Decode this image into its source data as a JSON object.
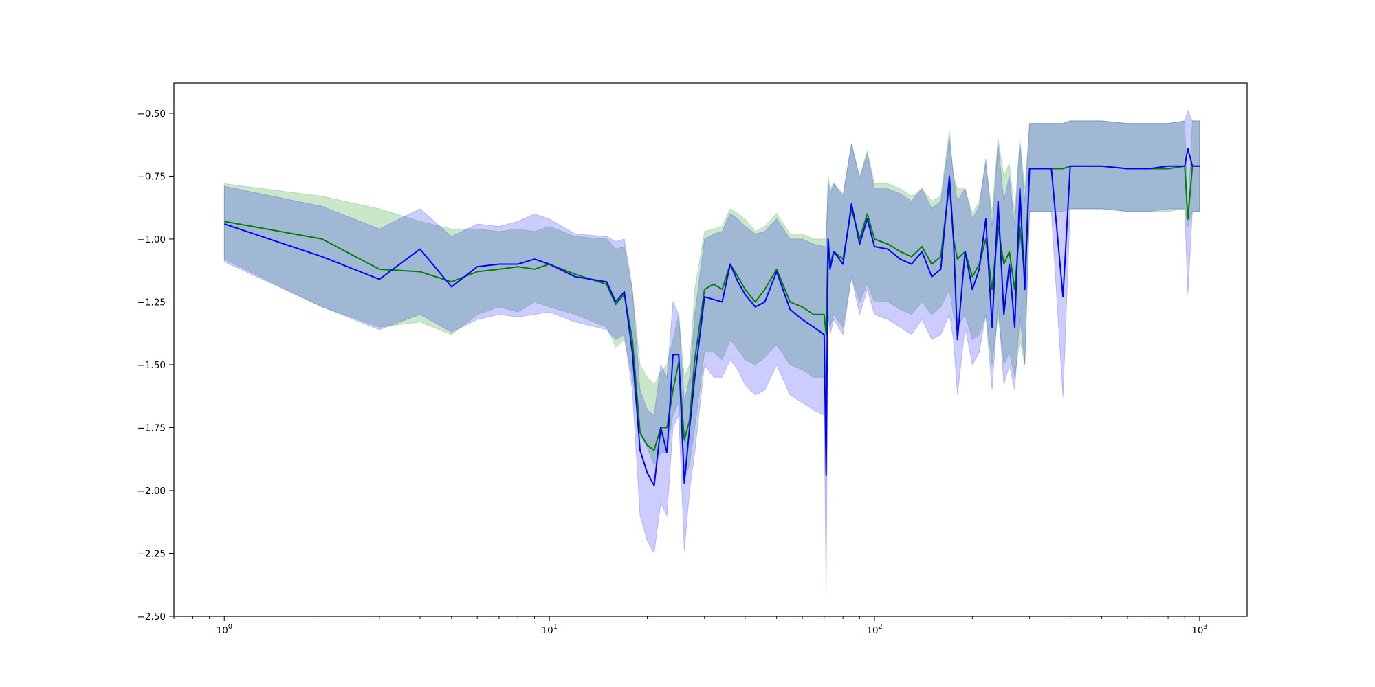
{
  "chart_data": {
    "type": "line",
    "title": "",
    "xlabel": "",
    "ylabel": "",
    "x_scale": "log",
    "xlim": [
      0.7,
      1400
    ],
    "ylim": [
      -2.5,
      -0.38
    ],
    "grid": false,
    "legend": "none",
    "x_ticks": [
      {
        "value": 1,
        "base": "10",
        "exp": "0"
      },
      {
        "value": 10,
        "base": "10",
        "exp": "1"
      },
      {
        "value": 100,
        "base": "10",
        "exp": "2"
      },
      {
        "value": 1000,
        "base": "10",
        "exp": "3"
      }
    ],
    "y_ticks": [
      {
        "value": -0.5,
        "label": "−0.50"
      },
      {
        "value": -0.75,
        "label": "−0.75"
      },
      {
        "value": -1.0,
        "label": "−1.00"
      },
      {
        "value": -1.25,
        "label": "−1.25"
      },
      {
        "value": -1.5,
        "label": "−1.50"
      },
      {
        "value": -1.75,
        "label": "−1.75"
      },
      {
        "value": -2.0,
        "label": "−2.00"
      },
      {
        "value": -2.25,
        "label": "−2.25"
      },
      {
        "value": -2.5,
        "label": "−2.50"
      }
    ],
    "series": [
      {
        "color": "#008000",
        "band_color": "#2ca02c",
        "band_opacity": 0.25,
        "x": [
          1,
          2,
          3,
          4,
          5,
          6,
          7,
          8,
          9,
          10,
          12,
          15,
          16,
          17,
          18,
          19,
          20,
          21,
          22,
          23,
          24,
          25,
          26,
          27,
          28,
          30,
          32,
          34,
          36,
          38,
          40,
          43,
          46,
          50,
          55,
          60,
          65,
          70,
          71,
          72,
          73,
          75,
          80,
          85,
          90,
          95,
          100,
          110,
          120,
          130,
          140,
          150,
          160,
          170,
          175,
          180,
          190,
          200,
          210,
          220,
          230,
          240,
          250,
          260,
          270,
          280,
          290,
          300,
          350,
          380,
          400,
          500,
          600,
          700,
          800,
          900,
          920,
          950,
          1000
        ],
        "y": [
          -0.93,
          -1.0,
          -1.12,
          -1.13,
          -1.17,
          -1.13,
          -1.12,
          -1.11,
          -1.12,
          -1.1,
          -1.14,
          -1.18,
          -1.26,
          -1.22,
          -1.4,
          -1.77,
          -1.82,
          -1.84,
          -1.75,
          -1.75,
          -1.6,
          -1.49,
          -1.8,
          -1.72,
          -1.48,
          -1.2,
          -1.18,
          -1.2,
          -1.1,
          -1.15,
          -1.2,
          -1.25,
          -1.2,
          -1.12,
          -1.25,
          -1.27,
          -1.3,
          -1.3,
          -1.38,
          -1.0,
          -1.1,
          -1.05,
          -1.08,
          -0.88,
          -1.0,
          -0.9,
          -1.0,
          -1.02,
          -1.05,
          -1.07,
          -1.03,
          -1.1,
          -1.07,
          -0.78,
          -1.0,
          -1.08,
          -1.05,
          -1.15,
          -1.1,
          -1.0,
          -1.2,
          -0.95,
          -1.1,
          -1.05,
          -1.2,
          -0.95,
          -1.15,
          -0.72,
          -0.72,
          -0.72,
          -0.71,
          -0.71,
          -0.72,
          -0.72,
          -0.72,
          -0.71,
          -0.92,
          -0.71,
          -0.71
        ],
        "lower": [
          -1.08,
          -1.27,
          -1.35,
          -1.33,
          -1.38,
          -1.3,
          -1.27,
          -1.29,
          -1.25,
          -1.27,
          -1.3,
          -1.35,
          -1.43,
          -1.4,
          -1.55,
          -1.78,
          -1.83,
          -1.9,
          -1.85,
          -1.85,
          -1.7,
          -1.65,
          -1.95,
          -1.9,
          -1.75,
          -1.45,
          -1.45,
          -1.48,
          -1.4,
          -1.44,
          -1.48,
          -1.5,
          -1.47,
          -1.42,
          -1.5,
          -1.52,
          -1.55,
          -1.55,
          -1.55,
          -1.3,
          -1.35,
          -1.3,
          -1.35,
          -1.15,
          -1.25,
          -1.18,
          -1.25,
          -1.25,
          -1.28,
          -1.3,
          -1.25,
          -1.3,
          -1.27,
          -1.2,
          -1.3,
          -1.35,
          -1.3,
          -1.4,
          -1.38,
          -1.3,
          -1.5,
          -1.3,
          -1.5,
          -1.45,
          -1.55,
          -1.4,
          -1.5,
          -0.89,
          -0.89,
          -0.89,
          -0.88,
          -0.88,
          -0.89,
          -0.89,
          -0.89,
          -0.88,
          -0.95,
          -0.89,
          -0.89
        ],
        "upper": [
          -0.78,
          -0.83,
          -0.88,
          -0.93,
          -0.96,
          -0.96,
          -0.97,
          -0.96,
          -0.97,
          -0.95,
          -0.99,
          -1.0,
          -1.04,
          -1.03,
          -1.2,
          -1.5,
          -1.55,
          -1.58,
          -1.53,
          -1.5,
          -1.4,
          -1.3,
          -1.55,
          -1.5,
          -1.2,
          -0.97,
          -0.96,
          -0.95,
          -0.88,
          -0.9,
          -0.92,
          -0.97,
          -0.95,
          -0.9,
          -0.98,
          -0.98,
          -1.0,
          -1.0,
          -1.0,
          -0.75,
          -0.8,
          -0.78,
          -0.82,
          -0.62,
          -0.75,
          -0.65,
          -0.78,
          -0.78,
          -0.8,
          -0.83,
          -0.8,
          -0.85,
          -0.83,
          -0.57,
          -0.75,
          -0.8,
          -0.8,
          -0.9,
          -0.85,
          -0.7,
          -0.9,
          -0.6,
          -0.75,
          -0.7,
          -0.9,
          -0.6,
          -0.8,
          -0.54,
          -0.54,
          -0.54,
          -0.53,
          -0.53,
          -0.54,
          -0.54,
          -0.54,
          -0.53,
          -0.9,
          -0.53,
          -0.53
        ]
      },
      {
        "color": "#0000ff",
        "band_color": "#0000ff",
        "band_opacity": 0.2,
        "x": [
          1,
          2,
          3,
          4,
          5,
          6,
          7,
          8,
          9,
          10,
          12,
          15,
          16,
          17,
          18,
          19,
          20,
          21,
          22,
          23,
          24,
          25,
          26,
          27,
          28,
          30,
          32,
          34,
          36,
          38,
          40,
          43,
          46,
          50,
          55,
          60,
          65,
          70,
          71,
          72,
          73,
          75,
          80,
          85,
          90,
          95,
          100,
          110,
          120,
          130,
          140,
          150,
          160,
          170,
          175,
          180,
          190,
          200,
          210,
          220,
          230,
          240,
          250,
          260,
          270,
          280,
          290,
          300,
          350,
          380,
          400,
          500,
          600,
          700,
          800,
          900,
          920,
          950,
          1000
        ],
        "y": [
          -0.94,
          -1.07,
          -1.16,
          -1.04,
          -1.19,
          -1.11,
          -1.1,
          -1.1,
          -1.08,
          -1.1,
          -1.15,
          -1.17,
          -1.25,
          -1.21,
          -1.45,
          -1.84,
          -1.93,
          -1.98,
          -1.75,
          -1.85,
          -1.46,
          -1.46,
          -1.97,
          -1.75,
          -1.55,
          -1.23,
          -1.24,
          -1.25,
          -1.1,
          -1.17,
          -1.22,
          -1.27,
          -1.25,
          -1.13,
          -1.28,
          -1.32,
          -1.35,
          -1.38,
          -1.94,
          -1.0,
          -1.12,
          -1.05,
          -1.1,
          -0.86,
          -1.02,
          -0.92,
          -1.03,
          -1.04,
          -1.08,
          -1.1,
          -1.05,
          -1.15,
          -1.12,
          -0.75,
          -1.0,
          -1.4,
          -1.05,
          -1.2,
          -1.12,
          -0.92,
          -1.35,
          -0.85,
          -1.3,
          -1.1,
          -1.35,
          -0.8,
          -1.2,
          -0.72,
          -0.72,
          -1.23,
          -0.71,
          -0.71,
          -0.72,
          -0.72,
          -0.71,
          -0.71,
          -0.64,
          -0.71,
          -0.71
        ],
        "lower": [
          -1.09,
          -1.27,
          -1.36,
          -1.3,
          -1.37,
          -1.32,
          -1.3,
          -1.31,
          -1.3,
          -1.29,
          -1.33,
          -1.36,
          -1.4,
          -1.38,
          -1.6,
          -2.1,
          -2.2,
          -2.25,
          -2.05,
          -2.1,
          -1.75,
          -1.7,
          -2.24,
          -2.0,
          -1.85,
          -1.5,
          -1.55,
          -1.55,
          -1.48,
          -1.52,
          -1.58,
          -1.62,
          -1.6,
          -1.5,
          -1.62,
          -1.65,
          -1.68,
          -1.7,
          -2.41,
          -1.3,
          -1.38,
          -1.32,
          -1.38,
          -1.15,
          -1.3,
          -1.2,
          -1.3,
          -1.32,
          -1.35,
          -1.38,
          -1.32,
          -1.4,
          -1.38,
          -1.3,
          -1.4,
          -1.62,
          -1.35,
          -1.5,
          -1.45,
          -1.3,
          -1.6,
          -1.25,
          -1.58,
          -1.5,
          -1.6,
          -1.3,
          -1.5,
          -0.89,
          -0.89,
          -1.63,
          -0.88,
          -0.88,
          -0.89,
          -0.89,
          -0.88,
          -0.88,
          -1.22,
          -0.89,
          -0.89
        ],
        "upper": [
          -0.79,
          -0.87,
          -0.96,
          -0.88,
          -0.99,
          -0.94,
          -0.95,
          -0.93,
          -0.9,
          -0.92,
          -0.98,
          -0.99,
          -1.01,
          -1.0,
          -1.2,
          -1.6,
          -1.68,
          -1.7,
          -1.5,
          -1.55,
          -1.25,
          -1.3,
          -1.65,
          -1.55,
          -1.3,
          -1.0,
          -0.98,
          -0.97,
          -0.9,
          -0.92,
          -0.95,
          -0.98,
          -0.97,
          -0.92,
          -1.0,
          -1.0,
          -1.02,
          -1.03,
          -1.03,
          -0.77,
          -0.82,
          -0.78,
          -0.83,
          -0.62,
          -0.76,
          -0.66,
          -0.8,
          -0.8,
          -0.82,
          -0.85,
          -0.8,
          -0.88,
          -0.85,
          -0.6,
          -0.75,
          -0.85,
          -0.8,
          -0.92,
          -0.87,
          -0.68,
          -0.95,
          -0.62,
          -0.85,
          -0.75,
          -0.95,
          -0.62,
          -0.85,
          -0.54,
          -0.54,
          -0.54,
          -0.53,
          -0.53,
          -0.54,
          -0.54,
          -0.54,
          -0.53,
          -0.49,
          -0.53,
          -0.53
        ]
      }
    ]
  }
}
